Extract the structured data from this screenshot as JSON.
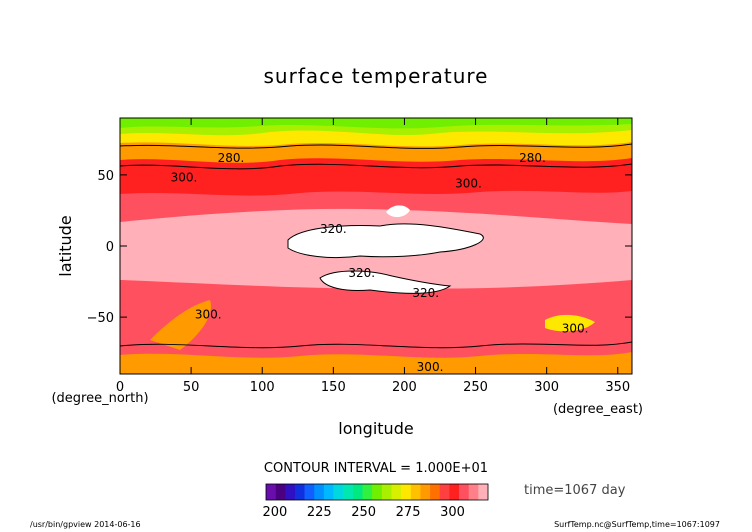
{
  "chart_data": {
    "type": "heatmap",
    "title": "surface temperature",
    "xlabel": "longitude",
    "ylabel": "latitude",
    "x_unit": "(degree_east)",
    "y_unit": "(degree_north)",
    "xlim": [
      0,
      360
    ],
    "ylim": [
      -90,
      90
    ],
    "x_ticks": [
      "0",
      "50",
      "100",
      "150",
      "200",
      "250",
      "300",
      "350"
    ],
    "y_ticks": [
      "50",
      "0",
      "−50"
    ],
    "contour_interval_text": "CONTOUR INTERVAL = 1.000E+01",
    "time_text": "time=1067 day",
    "contour_labels": [
      {
        "text": "280.",
        "lon": 78,
        "lat": 62
      },
      {
        "text": "280.",
        "lon": 290,
        "lat": 62
      },
      {
        "text": "300.",
        "lon": 45,
        "lat": 48
      },
      {
        "text": "300.",
        "lon": 245,
        "lat": 44
      },
      {
        "text": "320.",
        "lon": 150,
        "lat": 12
      },
      {
        "text": "320.",
        "lon": 170,
        "lat": -19
      },
      {
        "text": "320.",
        "lon": 215,
        "lat": -33
      },
      {
        "text": "300.",
        "lon": 62,
        "lat": -48
      },
      {
        "text": "300.",
        "lon": 320,
        "lat": -58
      },
      {
        "text": "300.",
        "lon": 218,
        "lat": -85
      }
    ],
    "colorbar": {
      "tick_labels": [
        "200",
        "225",
        "250",
        "275",
        "300"
      ],
      "colors": [
        "#6a0dad",
        "#4b0082",
        "#3010c0",
        "#1030e0",
        "#1060ff",
        "#0090ff",
        "#00b8ff",
        "#00d8e0",
        "#00e8b0",
        "#00e880",
        "#30f040",
        "#70f000",
        "#a8f000",
        "#d8f000",
        "#ffe800",
        "#ffc000",
        "#ff9a00",
        "#ff7000",
        "#ff4040",
        "#ff2020",
        "#ff5060",
        "#ff8088",
        "#ffb0b8"
      ]
    }
  },
  "footer": {
    "left": "/usr/bin/gpview  2014-06-16",
    "right": "SurfTemp.nc@SurfTemp,time=1067:1097"
  }
}
